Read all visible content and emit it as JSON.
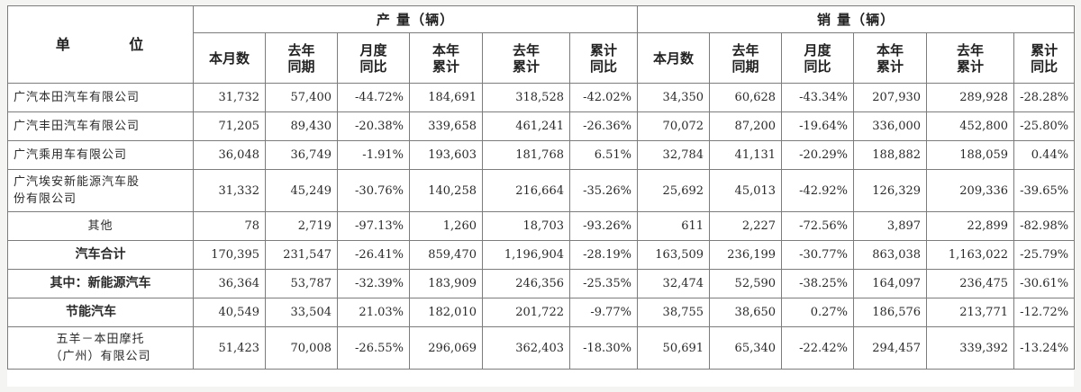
{
  "header": {
    "unit": "单 位",
    "production": "产 量（辆）",
    "sales": "销 量（辆）",
    "columns": [
      [
        "本月数"
      ],
      [
        "去年",
        "同期"
      ],
      [
        "月度",
        "同比"
      ],
      [
        "本年",
        "累计"
      ],
      [
        "去年",
        "累计"
      ],
      [
        "累计",
        "同比"
      ]
    ]
  },
  "rows": [
    {
      "name": [
        "广汽本田汽车有限公司"
      ],
      "bold": false,
      "align": "left",
      "production": [
        "31,732",
        "57,400",
        "-44.72%",
        "184,691",
        "318,528",
        "-42.02%"
      ],
      "sales": [
        "34,350",
        "60,628",
        "-43.34%",
        "207,930",
        "289,928",
        "-28.28%"
      ]
    },
    {
      "name": [
        "广汽丰田汽车有限公司"
      ],
      "bold": false,
      "align": "left",
      "production": [
        "71,205",
        "89,430",
        "-20.38%",
        "339,658",
        "461,241",
        "-26.36%"
      ],
      "sales": [
        "70,072",
        "87,200",
        "-19.64%",
        "336,000",
        "452,800",
        "-25.80%"
      ]
    },
    {
      "name": [
        "广汽乘用车有限公司"
      ],
      "bold": false,
      "align": "left",
      "production": [
        "36,048",
        "36,749",
        "-1.91%",
        "193,603",
        "181,768",
        "6.51%"
      ],
      "sales": [
        "32,784",
        "41,131",
        "-20.29%",
        "188,882",
        "188,059",
        "0.44%"
      ]
    },
    {
      "name": [
        "广汽埃安新能源汽车股",
        "份有限公司"
      ],
      "bold": false,
      "align": "left",
      "production": [
        "31,332",
        "45,249",
        "-30.76%",
        "140,258",
        "216,664",
        "-35.26%"
      ],
      "sales": [
        "25,692",
        "45,013",
        "-42.92%",
        "126,329",
        "209,336",
        "-39.65%"
      ]
    },
    {
      "name": [
        "其他"
      ],
      "bold": false,
      "align": "center",
      "production": [
        "78",
        "2,719",
        "-97.13%",
        "1,260",
        "18,703",
        "-93.26%"
      ],
      "sales": [
        "611",
        "2,227",
        "-72.56%",
        "3,897",
        "22,899",
        "-82.98%"
      ]
    },
    {
      "name": [
        "汽车合计"
      ],
      "bold": true,
      "align": "center",
      "production": [
        "170,395",
        "231,547",
        "-26.41%",
        "859,470",
        "1,196,904",
        "-28.19%"
      ],
      "sales": [
        "163,509",
        "236,199",
        "-30.77%",
        "863,038",
        "1,163,022",
        "-25.79%"
      ]
    },
    {
      "name": [
        "其中：新能源汽车"
      ],
      "bold": true,
      "align": "center",
      "production": [
        "36,364",
        "53,787",
        "-32.39%",
        "183,909",
        "246,356",
        "-25.35%"
      ],
      "sales": [
        "32,474",
        "52,590",
        "-38.25%",
        "164,097",
        "236,475",
        "-30.61%"
      ]
    },
    {
      "name": [
        "节能汽车"
      ],
      "bold": true,
      "align": "indent",
      "production": [
        "40,549",
        "33,504",
        "21.03%",
        "182,010",
        "201,722",
        "-9.77%"
      ],
      "sales": [
        "38,755",
        "38,650",
        "0.27%",
        "186,576",
        "213,771",
        "-12.72%"
      ]
    },
    {
      "name": [
        "五羊－本田摩托",
        "（广州）有限公司"
      ],
      "bold": false,
      "align": "center",
      "production": [
        "51,423",
        "70,008",
        "-26.55%",
        "296,069",
        "362,403",
        "-18.30%"
      ],
      "sales": [
        "50,691",
        "65,340",
        "-22.42%",
        "294,457",
        "339,392",
        "-13.24%"
      ]
    }
  ]
}
